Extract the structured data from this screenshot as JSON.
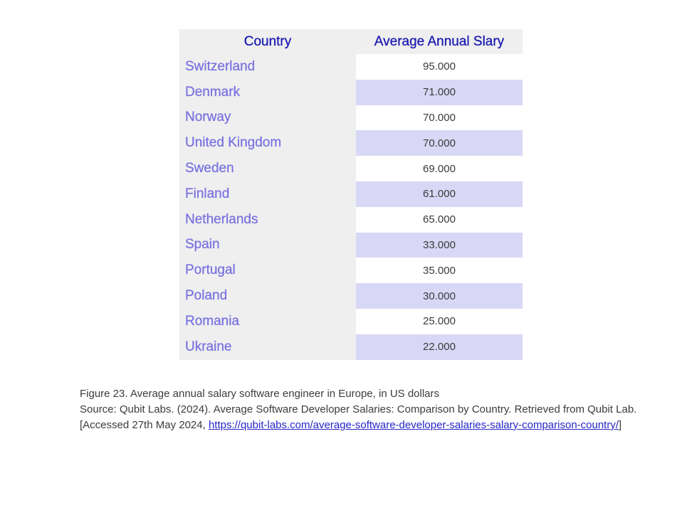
{
  "table": {
    "headers": {
      "country": "Country",
      "salary": "Average Annual Slary"
    },
    "rows": [
      {
        "country": "Switzerland",
        "value": "95.000"
      },
      {
        "country": "Denmark",
        "value": "71.000"
      },
      {
        "country": "Norway",
        "value": "70.000"
      },
      {
        "country": "United Kingdom",
        "value": "70.000"
      },
      {
        "country": "Sweden",
        "value": "69.000"
      },
      {
        "country": "Finland",
        "value": "61.000"
      },
      {
        "country": "Netherlands",
        "value": "65.000"
      },
      {
        "country": "Spain",
        "value": "33.000"
      },
      {
        "country": "Portugal",
        "value": "35.000"
      },
      {
        "country": "Poland",
        "value": "30.000"
      },
      {
        "country": "Romania",
        "value": "25.000"
      },
      {
        "country": "Ukraine",
        "value": "22.000"
      }
    ]
  },
  "caption": {
    "figure": "Figure 23. Average annual salary software engineer in Europe, in US dollars",
    "source_prefix": "Source: Qubit Labs. (2024). Average Software Developer Salaries: Comparison by Country. Retrieved from Qubit Lab. [Accessed 27th May 2024, ",
    "link": "https://qubit-labs.com/average-software-developer-salaries-salary-comparison-country/",
    "source_suffix": "]"
  },
  "colors": {
    "header_text": "#1a1ab0",
    "country_text": "#7b73e0",
    "stripe": "#d8d8f6",
    "column_bg": "#efefef",
    "link": "#2525c8"
  }
}
